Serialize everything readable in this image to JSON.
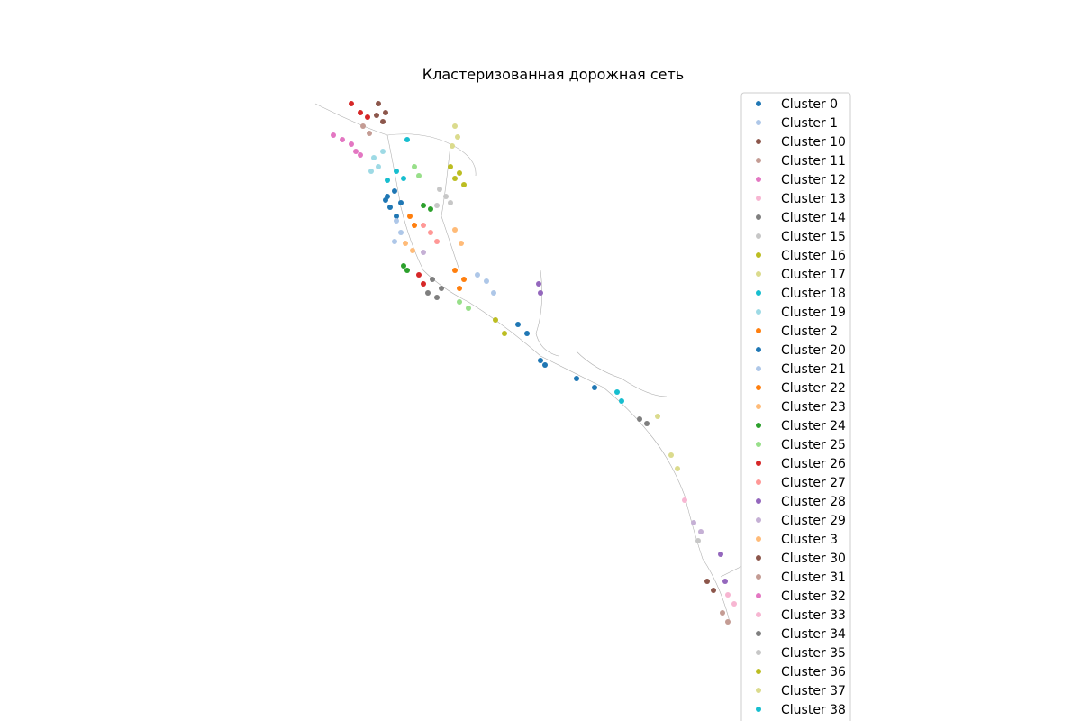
{
  "chart_data": {
    "type": "scatter",
    "title": "Кластеризованная дорожная сеть",
    "xlabel": "",
    "ylabel": "",
    "axes_visible": false,
    "grid": false,
    "legend_position": "right",
    "series": [
      {
        "name": "Cluster 0",
        "color": "#1f77b4",
        "points": [
          [
            430,
            218
          ],
          [
            438,
            212
          ],
          [
            445,
            225
          ],
          [
            433,
            230
          ],
          [
            440,
            240
          ],
          [
            428,
            222
          ]
        ]
      },
      {
        "name": "Cluster 1",
        "color": "#aec7e8",
        "points": [
          [
            440,
            245
          ],
          [
            445,
            258
          ],
          [
            438,
            268
          ],
          [
            530,
            305
          ],
          [
            540,
            312
          ],
          [
            548,
            325
          ]
        ]
      },
      {
        "name": "Cluster 10",
        "color": "#8c564b",
        "points": [
          [
            420,
            115
          ],
          [
            428,
            125
          ],
          [
            425,
            135
          ],
          [
            418,
            128
          ]
        ]
      },
      {
        "name": "Cluster 11",
        "color": "#c49c94",
        "points": [
          [
            403,
            140
          ],
          [
            410,
            148
          ]
        ]
      },
      {
        "name": "Cluster 12",
        "color": "#e377c2",
        "points": [
          [
            370,
            150
          ],
          [
            380,
            155
          ],
          [
            390,
            160
          ],
          [
            395,
            168
          ],
          [
            400,
            172
          ]
        ]
      },
      {
        "name": "Cluster 13",
        "color": "#f7b6d2",
        "points": []
      },
      {
        "name": "Cluster 14",
        "color": "#7f7f7f",
        "points": [
          [
            480,
            310
          ],
          [
            490,
            320
          ],
          [
            485,
            330
          ],
          [
            475,
            325
          ]
        ]
      },
      {
        "name": "Cluster 15",
        "color": "#c7c7c7",
        "points": [
          [
            488,
            210
          ],
          [
            495,
            218
          ],
          [
            500,
            225
          ],
          [
            485,
            228
          ]
        ]
      },
      {
        "name": "Cluster 16",
        "color": "#bcbd22",
        "points": [
          [
            500,
            185
          ],
          [
            510,
            192
          ],
          [
            515,
            205
          ],
          [
            505,
            198
          ]
        ]
      },
      {
        "name": "Cluster 17",
        "color": "#dbdb8d",
        "points": [
          [
            505,
            140
          ],
          [
            508,
            152
          ],
          [
            502,
            162
          ]
        ]
      },
      {
        "name": "Cluster 18",
        "color": "#17becf",
        "points": [
          [
            440,
            190
          ],
          [
            448,
            198
          ],
          [
            452,
            155
          ],
          [
            430,
            200
          ]
        ]
      },
      {
        "name": "Cluster 19",
        "color": "#9edae5",
        "points": [
          [
            415,
            175
          ],
          [
            420,
            185
          ],
          [
            425,
            168
          ],
          [
            412,
            190
          ]
        ]
      },
      {
        "name": "Cluster 2",
        "color": "#ff7f0e",
        "points": [
          [
            455,
            240
          ],
          [
            460,
            250
          ],
          [
            505,
            300
          ],
          [
            515,
            310
          ],
          [
            510,
            320
          ]
        ]
      },
      {
        "name": "Cluster 20",
        "color": "#1f77b4",
        "points": [
          [
            575,
            360
          ],
          [
            585,
            370
          ],
          [
            600,
            400
          ],
          [
            605,
            405
          ],
          [
            640,
            420
          ],
          [
            660,
            430
          ]
        ]
      },
      {
        "name": "Cluster 21",
        "color": "#aec7e8",
        "points": []
      },
      {
        "name": "Cluster 22",
        "color": "#ff7f0e",
        "points": []
      },
      {
        "name": "Cluster 23",
        "color": "#ffbb78",
        "points": [
          [
            450,
            270
          ],
          [
            458,
            278
          ],
          [
            505,
            255
          ],
          [
            512,
            270
          ]
        ]
      },
      {
        "name": "Cluster 24",
        "color": "#2ca02c",
        "points": [
          [
            448,
            295
          ],
          [
            452,
            300
          ],
          [
            470,
            228
          ],
          [
            478,
            232
          ]
        ]
      },
      {
        "name": "Cluster 25",
        "color": "#98df8a",
        "points": [
          [
            460,
            185
          ],
          [
            465,
            195
          ],
          [
            510,
            335
          ],
          [
            520,
            342
          ]
        ]
      },
      {
        "name": "Cluster 26",
        "color": "#d62728",
        "points": [
          [
            390,
            115
          ],
          [
            400,
            125
          ],
          [
            408,
            130
          ],
          [
            465,
            305
          ],
          [
            470,
            315
          ]
        ]
      },
      {
        "name": "Cluster 27",
        "color": "#ff9896",
        "points": [
          [
            470,
            250
          ],
          [
            478,
            258
          ],
          [
            485,
            268
          ]
        ]
      },
      {
        "name": "Cluster 28",
        "color": "#9467bd",
        "points": [
          [
            598,
            315
          ],
          [
            600,
            325
          ],
          [
            800,
            615
          ],
          [
            805,
            645
          ]
        ]
      },
      {
        "name": "Cluster 29",
        "color": "#c5b0d5",
        "points": [
          [
            770,
            580
          ],
          [
            778,
            590
          ],
          [
            470,
            280
          ]
        ]
      },
      {
        "name": "Cluster 3",
        "color": "#ffbb78",
        "points": []
      },
      {
        "name": "Cluster 30",
        "color": "#8c564b",
        "points": [
          [
            785,
            645
          ],
          [
            792,
            655
          ]
        ]
      },
      {
        "name": "Cluster 31",
        "color": "#c49c94",
        "points": [
          [
            802,
            680
          ],
          [
            808,
            690
          ]
        ]
      },
      {
        "name": "Cluster 32",
        "color": "#e377c2",
        "points": []
      },
      {
        "name": "Cluster 33",
        "color": "#f7b6d2",
        "points": [
          [
            760,
            555
          ],
          [
            808,
            660
          ],
          [
            815,
            670
          ]
        ]
      },
      {
        "name": "Cluster 34",
        "color": "#7f7f7f",
        "points": [
          [
            710,
            465
          ],
          [
            718,
            470
          ]
        ]
      },
      {
        "name": "Cluster 35",
        "color": "#c7c7c7",
        "points": [
          [
            775,
            600
          ]
        ]
      },
      {
        "name": "Cluster 36",
        "color": "#bcbd22",
        "points": [
          [
            550,
            355
          ],
          [
            560,
            370
          ]
        ]
      },
      {
        "name": "Cluster 37",
        "color": "#dbdb8d",
        "points": [
          [
            745,
            505
          ],
          [
            752,
            520
          ],
          [
            730,
            462
          ]
        ]
      },
      {
        "name": "Cluster 38",
        "color": "#17becf",
        "points": [
          [
            685,
            435
          ],
          [
            690,
            445
          ]
        ]
      }
    ]
  }
}
